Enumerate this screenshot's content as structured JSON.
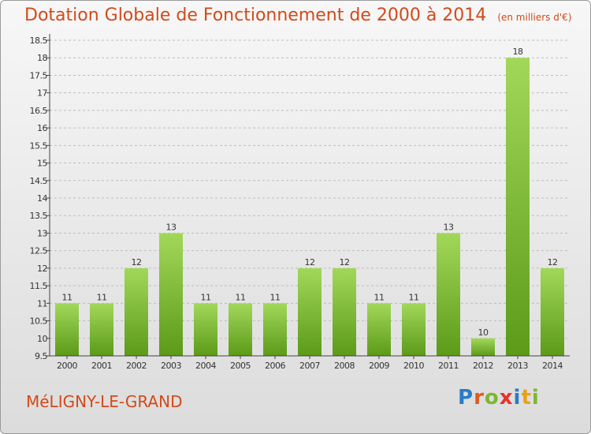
{
  "header": {
    "title": "Dotation Globale de Fonctionnement de 2000 à 2014",
    "unit": "(en milliers d'€)"
  },
  "footer": {
    "commune": "MéLIGNY-LE-GRAND",
    "logo_letters": [
      {
        "ch": "P",
        "color": "#2a7ac8"
      },
      {
        "ch": "r",
        "color": "#e05a1a"
      },
      {
        "ch": "o",
        "color": "#7cb82f"
      },
      {
        "ch": "x",
        "color": "#e8302a"
      },
      {
        "ch": "i",
        "color": "#2a7ac8"
      },
      {
        "ch": "t",
        "color": "#e6a315"
      },
      {
        "ch": "i",
        "color": "#7cb82f"
      }
    ]
  },
  "colors": {
    "bar_top": "#a2d85a",
    "bar_bottom": "#5c9a18",
    "axis": "#444444",
    "grid": "#bdbdbd"
  },
  "chart_data": {
    "type": "bar",
    "title": "Dotation Globale de Fonctionnement de 2000 à 2014",
    "xlabel": "",
    "ylabel": "(en milliers d'€)",
    "categories": [
      "2000",
      "2001",
      "2002",
      "2003",
      "2004",
      "2005",
      "2006",
      "2007",
      "2008",
      "2009",
      "2010",
      "2011",
      "2012",
      "2013",
      "2014"
    ],
    "values": [
      11,
      11,
      12,
      13,
      11,
      11,
      11,
      12,
      12,
      11,
      11,
      13,
      10,
      18,
      12
    ],
    "labels": [
      "11",
      "11",
      "12",
      "13",
      "11",
      "11",
      "11",
      "12",
      "12",
      "11",
      "11",
      "13",
      "10",
      "18",
      "12"
    ],
    "ylim": [
      9.5,
      18.5
    ],
    "yticks": [
      9.5,
      10,
      10.5,
      11,
      11.5,
      12,
      12.5,
      13,
      13.5,
      14,
      14.5,
      15,
      15.5,
      16,
      16.5,
      17,
      17.5,
      18,
      18.5
    ],
    "ytick_labels": [
      "9.5",
      "10",
      "10.5",
      "11",
      "11.5",
      "12",
      "12.5",
      "13",
      "13.5",
      "14",
      "14.5",
      "15",
      "15.5",
      "16",
      "16.5",
      "17",
      "17.5",
      "18",
      "18.5"
    ],
    "grid": "horizontal dashed"
  }
}
